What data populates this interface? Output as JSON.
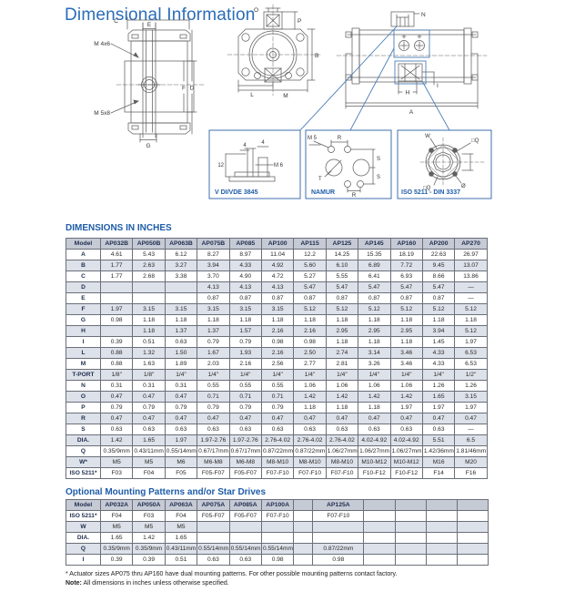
{
  "page_title": "Dimensional Information",
  "colors": {
    "title_blue": "#2b6cb8",
    "heading_blue": "#1e5ca8",
    "table_header_bg": "#c5cad5",
    "row_shade": "#dde1e9",
    "callout_blue": "#4b7db8",
    "diagram_line": "#606060"
  },
  "diagrams": {
    "top_view": {
      "c": "C",
      "e": "E",
      "m4": "M 4x6",
      "m5": "M 5x8",
      "f": "F",
      "d": "D",
      "g": "G"
    },
    "end_view": {
      "o": "O",
      "p": "P",
      "b": "B",
      "l": "L",
      "m": "M"
    },
    "side_view": {
      "n": "N",
      "i": "I",
      "h": "H",
      "a": "A"
    },
    "callout_vdi": {
      "title": "V DI/VDE 3845",
      "dim4a": "4",
      "dim4b": "4",
      "dim12": "12",
      "m6": "M 6"
    },
    "callout_namur": {
      "title": "NAMUR",
      "m5": "M 5",
      "r_top": "R",
      "s1": "S",
      "s2": "S",
      "t": "T",
      "r_bottom": "R"
    },
    "callout_iso": {
      "title": "ISO 5211 - DIN 3337",
      "w": "W",
      "q_top": "□Q",
      "q_bottom": "□Q",
      "dia": "Ø"
    }
  },
  "dimensions_table": {
    "title": "DIMENSIONS IN INCHES",
    "columns": [
      "Model",
      "AP032B",
      "AP050B",
      "AP063B",
      "AP075B",
      "AP085",
      "AP100",
      "AP115",
      "AP125",
      "AP145",
      "AP160",
      "AP200",
      "AP270"
    ],
    "rows": [
      {
        "label": "A",
        "values": [
          "4.61",
          "5.43",
          "6.12",
          "8.27",
          "8.97",
          "11.04",
          "12.2",
          "14.25",
          "15.35",
          "18.19",
          "22.63",
          "26.97"
        ]
      },
      {
        "label": "B",
        "values": [
          "1.77",
          "2.63",
          "3.27",
          "3.94",
          "4.33",
          "4.92",
          "5.60",
          "6.10",
          "6.89",
          "7.72",
          "9.45",
          "13.07"
        ]
      },
      {
        "label": "C",
        "values": [
          "1.77",
          "2.68",
          "3.38",
          "3.70",
          "4.90",
          "4.72",
          "5.27",
          "5.55",
          "6.41",
          "6.93",
          "8.66",
          "13.86"
        ]
      },
      {
        "label": "D",
        "values": [
          "",
          "",
          "",
          "4.13",
          "4.13",
          "4.13",
          "5.47",
          "5.47",
          "5.47",
          "5.47",
          "5.47",
          "—"
        ]
      },
      {
        "label": "E",
        "values": [
          "",
          "",
          "",
          "0.87",
          "0.87",
          "0.87",
          "0.87",
          "0.87",
          "0.87",
          "0.87",
          "0.87",
          "—"
        ]
      },
      {
        "label": "F",
        "values": [
          "1.97",
          "3.15",
          "3.15",
          "3.15",
          "3.15",
          "3.15",
          "5.12",
          "5.12",
          "5.12",
          "5.12",
          "5.12",
          "5.12"
        ]
      },
      {
        "label": "G",
        "values": [
          "0.98",
          "1.18",
          "1.18",
          "1.18",
          "1.18",
          "1.18",
          "1.18",
          "1.18",
          "1.18",
          "1.18",
          "1.18",
          "1.18"
        ]
      },
      {
        "label": "H",
        "values": [
          "",
          "1.18",
          "1.37",
          "1.37",
          "1.57",
          "2.16",
          "2.16",
          "2.95",
          "2.95",
          "2.95",
          "3.94",
          "5.12"
        ]
      },
      {
        "label": "I",
        "values": [
          "0.39",
          "0.51",
          "0.63",
          "0.79",
          "0.79",
          "0.98",
          "0.98",
          "1.18",
          "1.18",
          "1.18",
          "1.45",
          "1.97"
        ]
      },
      {
        "label": "L",
        "values": [
          "0.88",
          "1.32",
          "1.50",
          "1.67",
          "1.93",
          "2.16",
          "2.50",
          "2.74",
          "3.14",
          "3.46",
          "4.33",
          "6.53"
        ]
      },
      {
        "label": "M",
        "values": [
          "0.88",
          "1.63",
          "1.89",
          "2.03",
          "2.16",
          "2.56",
          "2.77",
          "2.81",
          "3.26",
          "3.46",
          "4.33",
          "6.53"
        ]
      },
      {
        "label": "T-PORT",
        "values": [
          "1/8\"",
          "1/8\"",
          "1/4\"",
          "1/4\"",
          "1/4\"",
          "1/4\"",
          "1/4\"",
          "1/4\"",
          "1/4\"",
          "1/4\"",
          "1/4\"",
          "1/2\""
        ]
      },
      {
        "label": "N",
        "values": [
          "0.31",
          "0.31",
          "0.31",
          "0.55",
          "0.55",
          "0.55",
          "1.06",
          "1.06",
          "1.06",
          "1.06",
          "1.26",
          "1.26"
        ]
      },
      {
        "label": "O",
        "values": [
          "0.47",
          "0.47",
          "0.47",
          "0.71",
          "0.71",
          "0.71",
          "1.42",
          "1.42",
          "1.42",
          "1.42",
          "1.65",
          "3.15"
        ]
      },
      {
        "label": "P",
        "values": [
          "0.79",
          "0.79",
          "0.79",
          "0.79",
          "0.79",
          "0.79",
          "1.18",
          "1.18",
          "1.18",
          "1.97",
          "1.97",
          "1.97"
        ]
      },
      {
        "label": "R",
        "values": [
          "0.47",
          "0.47",
          "0.47",
          "0.47",
          "0.47",
          "0.47",
          "0.47",
          "0.47",
          "0.47",
          "0.47",
          "0.47",
          "0.47"
        ]
      },
      {
        "label": "S",
        "values": [
          "0.63",
          "0.63",
          "0.63",
          "0.63",
          "0.63",
          "0.63",
          "0.63",
          "0.63",
          "0.63",
          "0.63",
          "0.63",
          "—"
        ]
      },
      {
        "label": "DIA.",
        "values": [
          "1.42",
          "1.65",
          "1.97",
          "1.97-2.76",
          "1.97-2.76",
          "2.76-4.02",
          "2.76-4.02",
          "2.76-4.02",
          "4.02-4.92",
          "4.02-4.92",
          "5.51",
          "6.5"
        ]
      },
      {
        "label": "Q",
        "values": [
          "0.35/9mm",
          "0.43/11mm",
          "0.55/14mm",
          "0.67/17mm",
          "0.67/17mm",
          "0.87/22mm",
          "0.87/22mm",
          "1.06/27mm",
          "1.06/27mm",
          "1.06/27mm",
          "1.42/36mm",
          "1.81/46mm"
        ]
      },
      {
        "label": "W*",
        "values": [
          "M5",
          "M5",
          "M6",
          "M6-M8",
          "M6-M8",
          "M8-M10",
          "M8-M10",
          "M8-M10",
          "M10-M12",
          "M10-M12",
          "M16",
          "M20"
        ]
      },
      {
        "label": "ISO 5211*",
        "values": [
          "F03",
          "F04",
          "F05",
          "F05-F07",
          "F05-F07",
          "F07-F10",
          "F07-F10",
          "F07-F10",
          "F10-F12",
          "F10-F12",
          "F14",
          "F16"
        ]
      }
    ]
  },
  "optional_table": {
    "title": "Optional Mounting Patterns and/or Star Drives",
    "columns": [
      "Model",
      "AP032A",
      "AP050A",
      "AP063A",
      "AP075A",
      "AP085A",
      "AP100A",
      "",
      "AP125A",
      "",
      "",
      "",
      ""
    ],
    "rows": [
      {
        "label": "ISO 5211*",
        "values": [
          "F04",
          "F03",
          "F04",
          "F05-F07",
          "F05-F07",
          "F07-F10",
          "",
          "F07-F10",
          "",
          "",
          "",
          ""
        ]
      },
      {
        "label": "W",
        "values": [
          "M5",
          "M5",
          "M5",
          "",
          "",
          "",
          "",
          "",
          "",
          "",
          "",
          ""
        ]
      },
      {
        "label": "DIA.",
        "values": [
          "1.65",
          "1.42",
          "1.65",
          "",
          "",
          "",
          "",
          "",
          "",
          "",
          "",
          ""
        ]
      },
      {
        "label": "Q",
        "values": [
          "0.35/9mm",
          "0.35/9mm",
          "0.43/11mm",
          "0.55/14mm",
          "0.55/14mm",
          "0.55/14mm",
          "",
          "0.87/22mm",
          "",
          "",
          "",
          ""
        ]
      },
      {
        "label": "I",
        "values": [
          "0.39",
          "0.39",
          "0.51",
          "0.63",
          "0.63",
          "0.98",
          "",
          "0.98",
          "",
          "",
          "",
          ""
        ]
      }
    ]
  },
  "footnotes": {
    "asterisk": "* Actuator sizes AP075 thru AP160 have dual mounting patterns. For other possible mounting patterns contact factory.",
    "note_label": "Note:",
    "note_text": "All dimensions in inches unless otherwise specified."
  }
}
